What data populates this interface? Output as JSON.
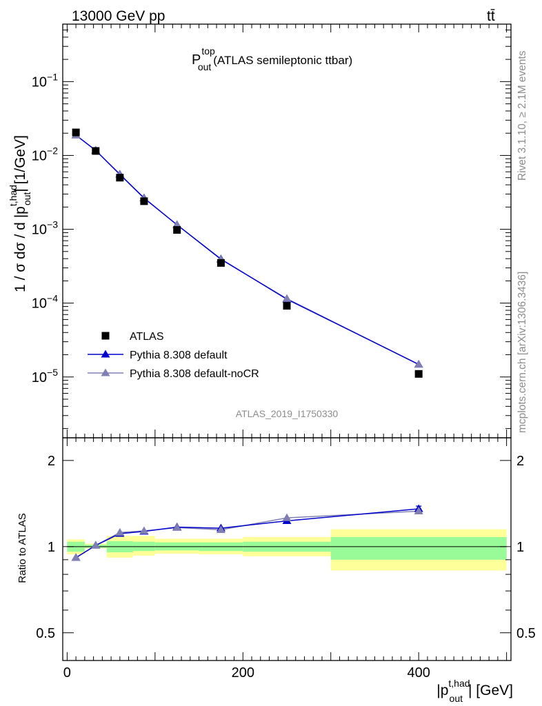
{
  "header": {
    "left": "13000 GeV pp",
    "right": "tt̄"
  },
  "main_title": {
    "symbol": "P",
    "sup": "top",
    "sub": "out",
    "text": "(ATLAS semileptonic ttbar)"
  },
  "side_labels": {
    "rivet": "Rivet 3.1.10, ≥ 2.1M events",
    "mcplots": "mcplots.cern.ch [arXiv:1306.3436]"
  },
  "analysis_id": "ATLAS_2019_I1750330",
  "chart_data": [
    {
      "type": "scatter",
      "panel": "main",
      "yscale": "log",
      "ylim": [
        1.5e-06,
        0.6
      ],
      "xlim": [
        -5,
        505
      ],
      "ylabel": {
        "pre": "1 / σ dσ / d |p",
        "sup": "t,had",
        "sub": "out",
        "post": "| [1/GeV]"
      },
      "y_ticks": [
        {
          "value": 0.1,
          "base": "10",
          "exp": "−1"
        },
        {
          "value": 0.01,
          "base": "10",
          "exp": "−2"
        },
        {
          "value": 0.001,
          "base": "10",
          "exp": "−3"
        },
        {
          "value": 0.0001,
          "base": "10",
          "exp": "−4"
        },
        {
          "value": 1e-05,
          "base": "10",
          "exp": "−5"
        }
      ],
      "legend": [
        "ATLAS",
        "Pythia 8.308 default",
        "Pythia 8.308 default-noCR"
      ],
      "series": [
        {
          "name": "ATLAS",
          "x": [
            10,
            32.5,
            60,
            87.5,
            125,
            175,
            250,
            400
          ],
          "y": [
            0.0205,
            0.0115,
            0.005,
            0.0024,
            0.00098,
            0.00035,
            9.2e-05,
            1.1e-05
          ]
        },
        {
          "name": "Pythia 8.308 default",
          "x": [
            10,
            32.5,
            60,
            87.5,
            125,
            175,
            250,
            400
          ],
          "y": [
            0.0188,
            0.0117,
            0.00555,
            0.00265,
            0.00115,
            0.000395,
            0.000113,
            1.48e-05
          ]
        },
        {
          "name": "Pythia 8.308 default-noCR",
          "x": [
            10,
            32.5,
            60,
            87.5,
            125,
            175,
            250,
            400
          ],
          "y": [
            0.0188,
            0.0117,
            0.0055,
            0.00263,
            0.00115,
            0.00039,
            0.000115,
            1.48e-05
          ]
        }
      ]
    },
    {
      "type": "line",
      "panel": "ratio",
      "yscale": "log",
      "ylim": [
        0.4,
        2.4
      ],
      "xlim": [
        -5,
        505
      ],
      "ylabel": "Ratio to ATLAS",
      "xlabel": {
        "pre": "|p",
        "sup": "t,had",
        "sub": "out",
        "post": "| [GeV]"
      },
      "y_ticks": [
        {
          "value": 0.5,
          "label": "0.5"
        },
        {
          "value": 1,
          "label": "1"
        },
        {
          "value": 2,
          "label": "2"
        }
      ],
      "x_ticks": [
        {
          "value": 0,
          "label": "0"
        },
        {
          "value": 200,
          "label": "200"
        },
        {
          "value": 400,
          "label": "400"
        }
      ],
      "bands": [
        {
          "x0": 0,
          "x1": 20,
          "stat_lo": 0.96,
          "stat_hi": 1.04,
          "tot_lo": 0.94,
          "tot_hi": 1.06
        },
        {
          "x0": 20,
          "x1": 45,
          "stat_lo": 0.99,
          "stat_hi": 1.015,
          "tot_lo": 0.985,
          "tot_hi": 1.025
        },
        {
          "x0": 45,
          "x1": 75,
          "stat_lo": 0.955,
          "stat_hi": 1.045,
          "tot_lo": 0.915,
          "tot_hi": 1.09
        },
        {
          "x0": 75,
          "x1": 100,
          "stat_lo": 0.965,
          "stat_hi": 1.04,
          "tot_lo": 0.93,
          "tot_hi": 1.09
        },
        {
          "x0": 100,
          "x1": 150,
          "stat_lo": 0.97,
          "stat_hi": 1.035,
          "tot_lo": 0.945,
          "tot_hi": 1.065
        },
        {
          "x0": 150,
          "x1": 200,
          "stat_lo": 0.965,
          "stat_hi": 1.035,
          "tot_lo": 0.94,
          "tot_hi": 1.065
        },
        {
          "x0": 200,
          "x1": 300,
          "stat_lo": 0.96,
          "stat_hi": 1.04,
          "tot_lo": 0.925,
          "tot_hi": 1.08
        },
        {
          "x0": 300,
          "x1": 500,
          "stat_lo": 0.9,
          "stat_hi": 1.08,
          "tot_lo": 0.825,
          "tot_hi": 1.15
        }
      ],
      "series": [
        {
          "name": "Pythia 8.308 default",
          "x": [
            10,
            32.5,
            60,
            87.5,
            125,
            175,
            250,
            400
          ],
          "y": [
            0.915,
            1.01,
            1.11,
            1.13,
            1.17,
            1.16,
            1.23,
            1.355
          ],
          "err": [
            0,
            0,
            0,
            0,
            0,
            0,
            0,
            0.03
          ]
        },
        {
          "name": "Pythia 8.308 default-noCR",
          "x": [
            10,
            32.5,
            60,
            87.5,
            125,
            175,
            250,
            400
          ],
          "y": [
            0.915,
            1.01,
            1.12,
            1.135,
            1.165,
            1.145,
            1.26,
            1.33
          ],
          "err": [
            0,
            0,
            0,
            0,
            0,
            0,
            0,
            0.025
          ]
        }
      ]
    }
  ],
  "colors": {
    "atlas": "#000000",
    "default": "#0000cc",
    "nocr": "#7f7fb4",
    "stat_band": "#98fb98",
    "tot_band": "#ffff99"
  }
}
